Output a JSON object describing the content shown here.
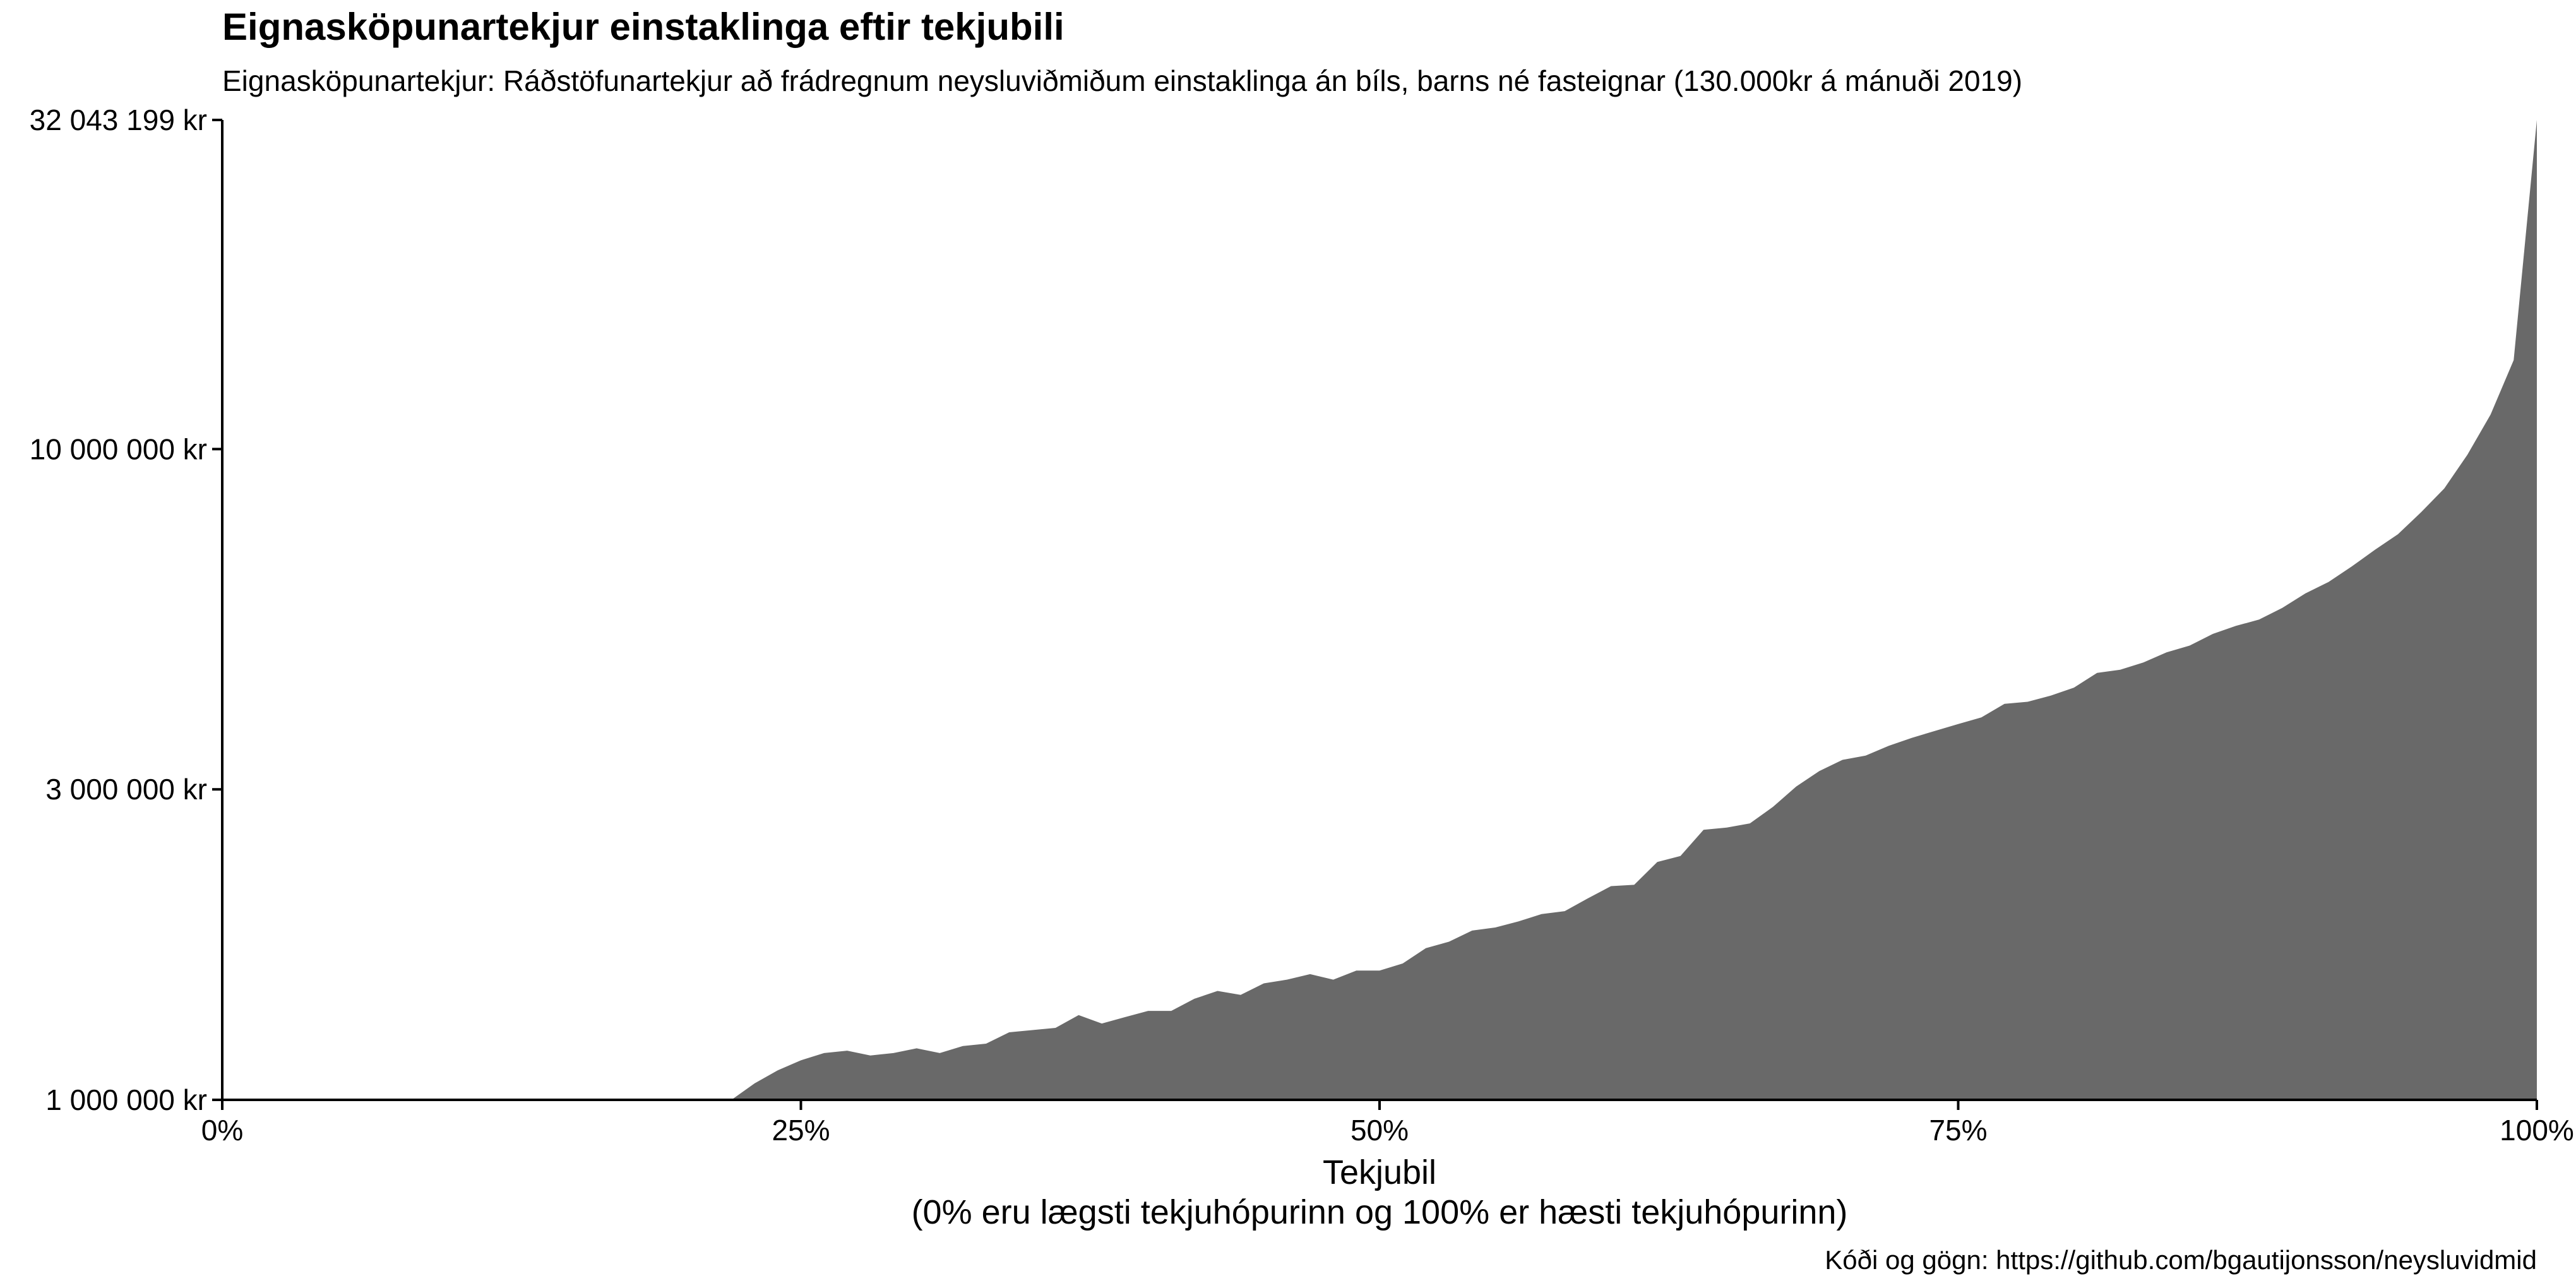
{
  "chart_data": {
    "type": "area",
    "title": "Eignasköpunartekjur einstaklinga eftir tekjubili",
    "subtitle": "Eignasköpunartekjur: Ráðstöfunartekjur að frádregnum neysluviðmiðum einstaklinga án bíls, barns né fasteignar (130.000kr á mánuði 2019)",
    "xlabel": "Tekjubil",
    "xlabel_sub": "(0% eru lægsti tekjuhópurinn og 100% er hæsti tekjuhópurinn)",
    "caption": "Kóði og gögn: https://github.com/bgautijonsson/neysluvidmid",
    "x_ticks": [
      {
        "value": 0,
        "label": "0%"
      },
      {
        "value": 25,
        "label": "25%"
      },
      {
        "value": 50,
        "label": "50%"
      },
      {
        "value": 75,
        "label": "75%"
      },
      {
        "value": 100,
        "label": "100%"
      }
    ],
    "y_ticks": [
      {
        "value": 1000000,
        "label": "1 000 000 kr"
      },
      {
        "value": 3000000,
        "label": "3 000 000 kr"
      },
      {
        "value": 10000000,
        "label": "10 000 000 kr"
      },
      {
        "value": 32043199,
        "label": "32 043 199 kr"
      }
    ],
    "y_scale": "log",
    "xlim": [
      0,
      100
    ],
    "ylim": [
      1000000,
      32043199
    ],
    "grid": false,
    "fill_color": "#696969",
    "x": [
      22,
      23,
      24,
      25,
      26,
      27,
      28,
      29,
      30,
      31,
      32,
      33,
      34,
      35,
      36,
      37,
      38,
      39,
      40,
      41,
      42,
      43,
      44,
      45,
      46,
      47,
      48,
      49,
      50,
      51,
      52,
      53,
      54,
      55,
      56,
      57,
      58,
      59,
      60,
      61,
      62,
      63,
      64,
      65,
      66,
      67,
      68,
      69,
      70,
      71,
      72,
      73,
      74,
      75,
      76,
      77,
      78,
      79,
      80,
      81,
      82,
      83,
      84,
      85,
      86,
      87,
      88,
      89,
      90,
      91,
      92,
      93,
      94,
      95,
      96,
      97,
      98,
      99,
      100
    ],
    "values": [
      1000000,
      1060000,
      1110000,
      1150000,
      1180000,
      1190000,
      1170000,
      1180000,
      1200000,
      1180000,
      1210000,
      1220000,
      1270000,
      1280000,
      1290000,
      1350000,
      1310000,
      1340000,
      1370000,
      1370000,
      1430000,
      1470000,
      1450000,
      1510000,
      1530000,
      1560000,
      1530000,
      1580000,
      1580000,
      1620000,
      1710000,
      1750000,
      1820000,
      1840000,
      1880000,
      1930000,
      1950000,
      2040000,
      2130000,
      2140000,
      2320000,
      2370000,
      2600000,
      2620000,
      2660000,
      2820000,
      3030000,
      3200000,
      3330000,
      3380000,
      3500000,
      3600000,
      3690000,
      3780000,
      3870000,
      4060000,
      4090000,
      4180000,
      4300000,
      4530000,
      4580000,
      4700000,
      4870000,
      4990000,
      5200000,
      5350000,
      5470000,
      5700000,
      6000000,
      6250000,
      6600000,
      7000000,
      7400000,
      8000000,
      8700000,
      9800000,
      11300000,
      13700000,
      32043199
    ]
  }
}
